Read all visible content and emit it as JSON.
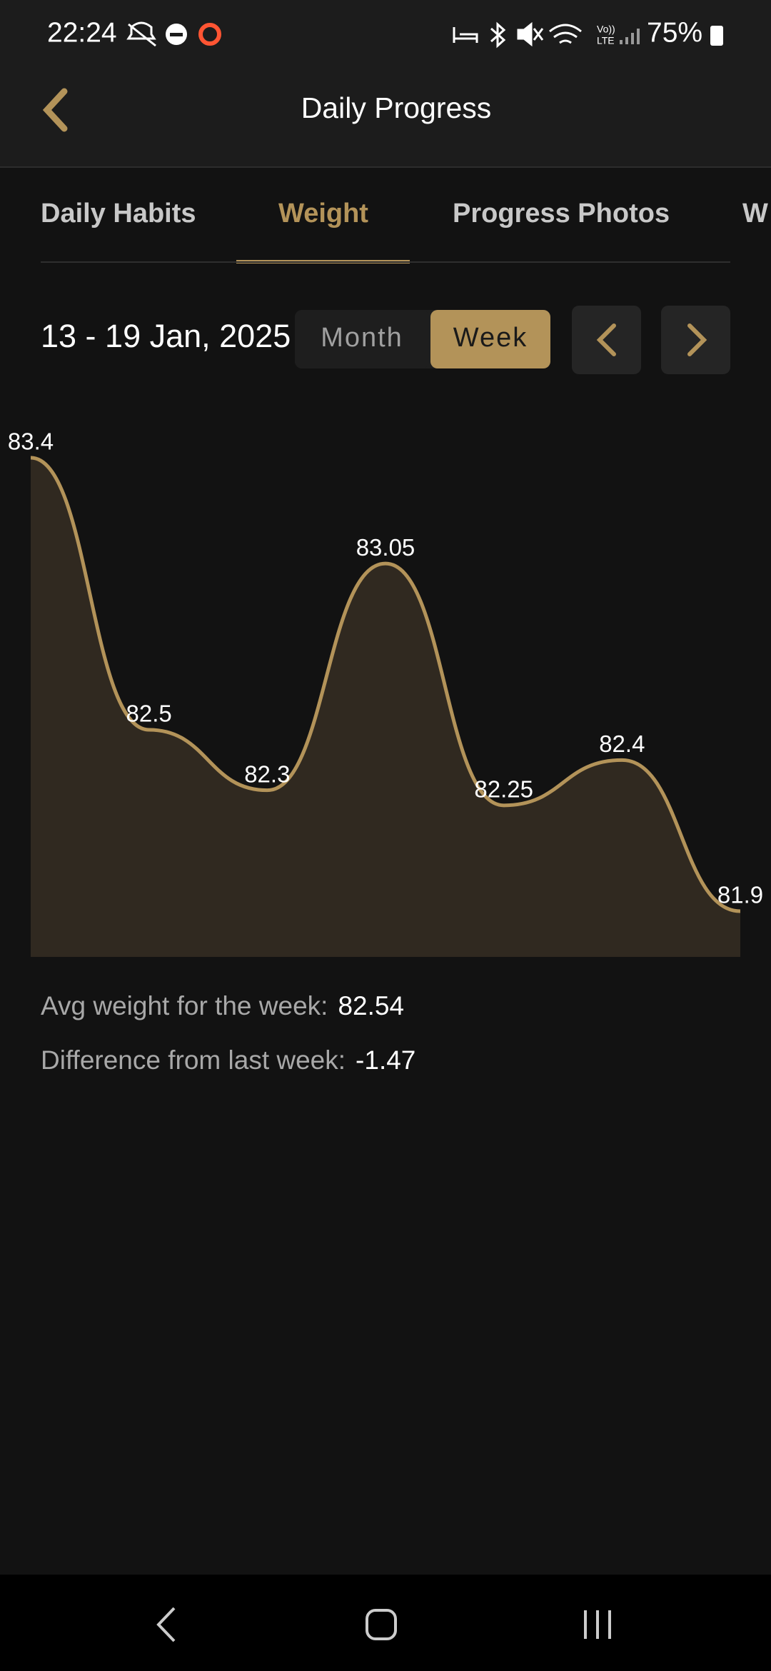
{
  "status_bar": {
    "time": "22:24",
    "battery": "75%"
  },
  "header": {
    "title": "Daily Progress"
  },
  "tabs": [
    "Daily Habits",
    "Weight",
    "Progress Photos",
    "W"
  ],
  "active_tab": 1,
  "date_range": "13 - 19 Jan, 2025",
  "period_toggle": {
    "options": [
      "Month",
      "Week"
    ],
    "selected": 1
  },
  "chart_data": {
    "type": "area",
    "values": [
      83.4,
      82.5,
      82.3,
      83.05,
      82.25,
      82.4,
      81.9
    ],
    "color": "#b39359",
    "fill": "#302920"
  },
  "stats": [
    {
      "label": "Avg weight for the week:",
      "value": 82.54
    },
    {
      "label": "Difference from last week:",
      "value": -1.47
    }
  ]
}
